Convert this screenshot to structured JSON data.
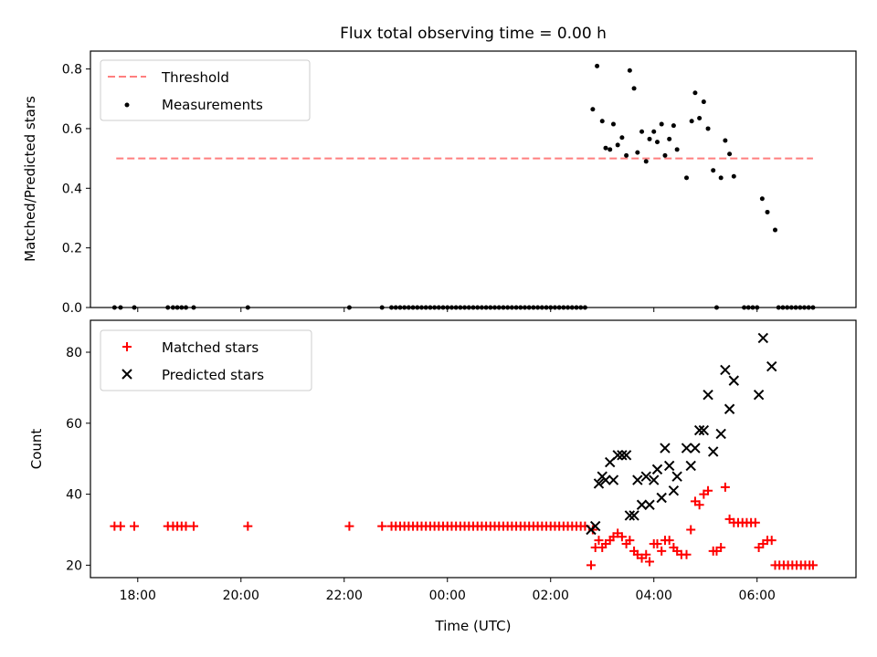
{
  "chart_data": [
    {
      "type": "scatter",
      "title": "Flux total observing time = 0.00 h",
      "ylabel": "Matched/Predicted stars",
      "xlabel": "",
      "ylim": [
        0,
        0.86
      ],
      "xlim": [
        "17:05",
        "07:55"
      ],
      "yticks": [
        0.0,
        0.2,
        0.4,
        0.6,
        0.8
      ],
      "ytick_labels": [
        "0.0",
        "0.2",
        "0.4",
        "0.6",
        "0.8"
      ],
      "grid": false,
      "legend": "top-left",
      "threshold": {
        "name": "Threshold",
        "y": 0.5,
        "x_start": "17:35",
        "x_end": "07:05",
        "color": "#ff7f7f",
        "style": "dashed"
      },
      "series": [
        {
          "name": "Measurements",
          "color": "#000000",
          "marker": "dot",
          "points": [
            [
              "17:33",
              0
            ],
            [
              "17:40",
              0
            ],
            [
              "17:56",
              0
            ],
            [
              "18:35",
              0
            ],
            [
              "18:41",
              0
            ],
            [
              "18:46",
              0
            ],
            [
              "18:51",
              0
            ],
            [
              "18:56",
              0
            ],
            [
              "19:05",
              0
            ],
            [
              "20:08",
              0
            ],
            [
              "22:06",
              0
            ],
            [
              "22:44",
              0
            ],
            [
              "22:55",
              0
            ],
            [
              "23:00",
              0
            ],
            [
              "23:05",
              0
            ],
            [
              "23:10",
              0
            ],
            [
              "23:15",
              0
            ],
            [
              "23:20",
              0
            ],
            [
              "23:25",
              0
            ],
            [
              "23:30",
              0
            ],
            [
              "23:35",
              0
            ],
            [
              "23:40",
              0
            ],
            [
              "23:45",
              0
            ],
            [
              "23:50",
              0
            ],
            [
              "23:55",
              0
            ],
            [
              "00:00",
              0
            ],
            [
              "00:05",
              0
            ],
            [
              "00:10",
              0
            ],
            [
              "00:15",
              0
            ],
            [
              "00:20",
              0
            ],
            [
              "00:25",
              0
            ],
            [
              "00:30",
              0
            ],
            [
              "00:35",
              0
            ],
            [
              "00:40",
              0
            ],
            [
              "00:45",
              0
            ],
            [
              "00:50",
              0
            ],
            [
              "00:55",
              0
            ],
            [
              "01:00",
              0
            ],
            [
              "01:05",
              0
            ],
            [
              "01:10",
              0
            ],
            [
              "01:15",
              0
            ],
            [
              "01:20",
              0
            ],
            [
              "01:25",
              0
            ],
            [
              "01:30",
              0
            ],
            [
              "01:35",
              0
            ],
            [
              "01:40",
              0
            ],
            [
              "01:45",
              0
            ],
            [
              "01:50",
              0
            ],
            [
              "01:55",
              0
            ],
            [
              "02:00",
              0
            ],
            [
              "02:05",
              0
            ],
            [
              "02:10",
              0
            ],
            [
              "02:15",
              0
            ],
            [
              "02:20",
              0
            ],
            [
              "02:25",
              0
            ],
            [
              "02:30",
              0
            ],
            [
              "02:35",
              0
            ],
            [
              "02:40",
              0
            ],
            [
              "02:49",
              0.665
            ],
            [
              "02:54",
              0.81
            ],
            [
              "03:00",
              0.625
            ],
            [
              "03:04",
              0.535
            ],
            [
              "03:09",
              0.53
            ],
            [
              "03:13",
              0.615
            ],
            [
              "03:18",
              0.545
            ],
            [
              "03:23",
              0.57
            ],
            [
              "03:28",
              0.51
            ],
            [
              "03:32",
              0.795
            ],
            [
              "03:37",
              0.735
            ],
            [
              "03:41",
              0.52
            ],
            [
              "03:46",
              0.59
            ],
            [
              "03:51",
              0.49
            ],
            [
              "03:55",
              0.565
            ],
            [
              "04:00",
              0.59
            ],
            [
              "04:04",
              0.555
            ],
            [
              "04:09",
              0.615
            ],
            [
              "04:13",
              0.51
            ],
            [
              "04:18",
              0.565
            ],
            [
              "04:23",
              0.61
            ],
            [
              "04:27",
              0.53
            ],
            [
              "04:38",
              0.435
            ],
            [
              "04:44",
              0.625
            ],
            [
              "04:48",
              0.72
            ],
            [
              "04:53",
              0.635
            ],
            [
              "04:58",
              0.69
            ],
            [
              "05:03",
              0.6
            ],
            [
              "05:09",
              0.46
            ],
            [
              "05:13",
              0
            ],
            [
              "05:18",
              0.435
            ],
            [
              "05:23",
              0.56
            ],
            [
              "05:28",
              0.515
            ],
            [
              "05:33",
              0.44
            ],
            [
              "05:45",
              0
            ],
            [
              "05:50",
              0
            ],
            [
              "05:55",
              0
            ],
            [
              "06:00",
              0
            ],
            [
              "06:06",
              0.365
            ],
            [
              "06:12",
              0.32
            ],
            [
              "06:21",
              0.26
            ],
            [
              "06:25",
              0
            ],
            [
              "06:30",
              0
            ],
            [
              "06:35",
              0
            ],
            [
              "06:40",
              0
            ],
            [
              "06:45",
              0
            ],
            [
              "06:50",
              0
            ],
            [
              "06:55",
              0
            ],
            [
              "07:00",
              0
            ],
            [
              "07:05",
              0
            ]
          ]
        }
      ]
    },
    {
      "type": "scatter",
      "title": "",
      "xlabel": "Time (UTC)",
      "ylabel": "Count",
      "ylim": [
        16.5,
        89
      ],
      "xlim": [
        "17:05",
        "07:55"
      ],
      "xticks": [
        "18:00",
        "20:00",
        "22:00",
        "00:00",
        "02:00",
        "04:00",
        "06:00"
      ],
      "xtick_labels": [
        "18:00",
        "20:00",
        "22:00",
        "00:00",
        "02:00",
        "04:00",
        "06:00"
      ],
      "yticks": [
        20,
        40,
        60,
        80
      ],
      "ytick_labels": [
        "20",
        "40",
        "60",
        "80"
      ],
      "grid": false,
      "legend": "top-left",
      "series": [
        {
          "name": "Matched stars",
          "color": "#ff0000",
          "marker": "plus",
          "points": [
            [
              "17:33",
              31
            ],
            [
              "17:40",
              31
            ],
            [
              "17:56",
              31
            ],
            [
              "18:35",
              31
            ],
            [
              "18:41",
              31
            ],
            [
              "18:46",
              31
            ],
            [
              "18:51",
              31
            ],
            [
              "18:56",
              31
            ],
            [
              "19:05",
              31
            ],
            [
              "20:08",
              31
            ],
            [
              "22:06",
              31
            ],
            [
              "22:44",
              31
            ],
            [
              "22:55",
              31
            ],
            [
              "23:00",
              31
            ],
            [
              "23:05",
              31
            ],
            [
              "23:10",
              31
            ],
            [
              "23:15",
              31
            ],
            [
              "23:20",
              31
            ],
            [
              "23:25",
              31
            ],
            [
              "23:30",
              31
            ],
            [
              "23:35",
              31
            ],
            [
              "23:40",
              31
            ],
            [
              "23:45",
              31
            ],
            [
              "23:50",
              31
            ],
            [
              "23:55",
              31
            ],
            [
              "00:00",
              31
            ],
            [
              "00:05",
              31
            ],
            [
              "00:10",
              31
            ],
            [
              "00:15",
              31
            ],
            [
              "00:20",
              31
            ],
            [
              "00:25",
              31
            ],
            [
              "00:30",
              31
            ],
            [
              "00:35",
              31
            ],
            [
              "00:40",
              31
            ],
            [
              "00:45",
              31
            ],
            [
              "00:50",
              31
            ],
            [
              "00:55",
              31
            ],
            [
              "01:00",
              31
            ],
            [
              "01:05",
              31
            ],
            [
              "01:10",
              31
            ],
            [
              "01:15",
              31
            ],
            [
              "01:20",
              31
            ],
            [
              "01:25",
              31
            ],
            [
              "01:30",
              31
            ],
            [
              "01:35",
              31
            ],
            [
              "01:40",
              31
            ],
            [
              "01:45",
              31
            ],
            [
              "01:50",
              31
            ],
            [
              "01:55",
              31
            ],
            [
              "02:00",
              31
            ],
            [
              "02:05",
              31
            ],
            [
              "02:10",
              31
            ],
            [
              "02:15",
              31
            ],
            [
              "02:20",
              31
            ],
            [
              "02:25",
              31
            ],
            [
              "02:30",
              31
            ],
            [
              "02:35",
              31
            ],
            [
              "02:40",
              31
            ],
            [
              "02:47",
              20
            ],
            [
              "02:49",
              30
            ],
            [
              "02:52",
              25
            ],
            [
              "02:56",
              27
            ],
            [
              "03:00",
              25
            ],
            [
              "03:04",
              26
            ],
            [
              "03:09",
              27
            ],
            [
              "03:13",
              28
            ],
            [
              "03:18",
              29
            ],
            [
              "03:23",
              28
            ],
            [
              "03:28",
              26
            ],
            [
              "03:32",
              27
            ],
            [
              "03:37",
              24
            ],
            [
              "03:41",
              23
            ],
            [
              "03:46",
              22
            ],
            [
              "03:51",
              23
            ],
            [
              "03:55",
              21
            ],
            [
              "04:00",
              26
            ],
            [
              "04:04",
              26
            ],
            [
              "04:09",
              24
            ],
            [
              "04:13",
              27
            ],
            [
              "04:18",
              27
            ],
            [
              "04:23",
              25
            ],
            [
              "04:27",
              24
            ],
            [
              "04:32",
              23
            ],
            [
              "04:38",
              23
            ],
            [
              "04:43",
              30
            ],
            [
              "04:48",
              38
            ],
            [
              "04:53",
              37
            ],
            [
              "04:58",
              40
            ],
            [
              "05:03",
              41
            ],
            [
              "05:09",
              24
            ],
            [
              "05:13",
              24
            ],
            [
              "05:18",
              25
            ],
            [
              "05:23",
              42
            ],
            [
              "05:28",
              33
            ],
            [
              "05:33",
              32
            ],
            [
              "05:38",
              32
            ],
            [
              "05:43",
              32
            ],
            [
              "05:48",
              32
            ],
            [
              "05:53",
              32
            ],
            [
              "05:58",
              32
            ],
            [
              "06:02",
              25
            ],
            [
              "06:07",
              26
            ],
            [
              "06:12",
              27
            ],
            [
              "06:17",
              27
            ],
            [
              "06:21",
              20
            ],
            [
              "06:26",
              20
            ],
            [
              "06:31",
              20
            ],
            [
              "06:36",
              20
            ],
            [
              "06:41",
              20
            ],
            [
              "06:46",
              20
            ],
            [
              "06:51",
              20
            ],
            [
              "06:56",
              20
            ],
            [
              "07:01",
              20
            ],
            [
              "07:05",
              20
            ]
          ]
        },
        {
          "name": "Predicted stars",
          "color": "#000000",
          "marker": "x",
          "points": [
            [
              "02:47",
              30
            ],
            [
              "02:52",
              31
            ],
            [
              "02:56",
              43
            ],
            [
              "03:00",
              45
            ],
            [
              "03:04",
              44
            ],
            [
              "03:09",
              49
            ],
            [
              "03:13",
              44
            ],
            [
              "03:18",
              51
            ],
            [
              "03:23",
              51
            ],
            [
              "03:28",
              51
            ],
            [
              "03:32",
              34
            ],
            [
              "03:37",
              34
            ],
            [
              "03:41",
              44
            ],
            [
              "03:46",
              37
            ],
            [
              "03:51",
              45
            ],
            [
              "03:55",
              37
            ],
            [
              "04:00",
              44
            ],
            [
              "04:04",
              47
            ],
            [
              "04:09",
              39
            ],
            [
              "04:13",
              53
            ],
            [
              "04:18",
              48
            ],
            [
              "04:23",
              41
            ],
            [
              "04:27",
              45
            ],
            [
              "04:38",
              53
            ],
            [
              "04:43",
              48
            ],
            [
              "04:48",
              53
            ],
            [
              "04:53",
              58
            ],
            [
              "04:58",
              58
            ],
            [
              "05:03",
              68
            ],
            [
              "05:09",
              52
            ],
            [
              "05:18",
              57
            ],
            [
              "05:23",
              75
            ],
            [
              "05:28",
              64
            ],
            [
              "05:33",
              72
            ],
            [
              "06:02",
              68
            ],
            [
              "06:07",
              84
            ],
            [
              "06:17",
              76
            ]
          ]
        }
      ]
    }
  ]
}
